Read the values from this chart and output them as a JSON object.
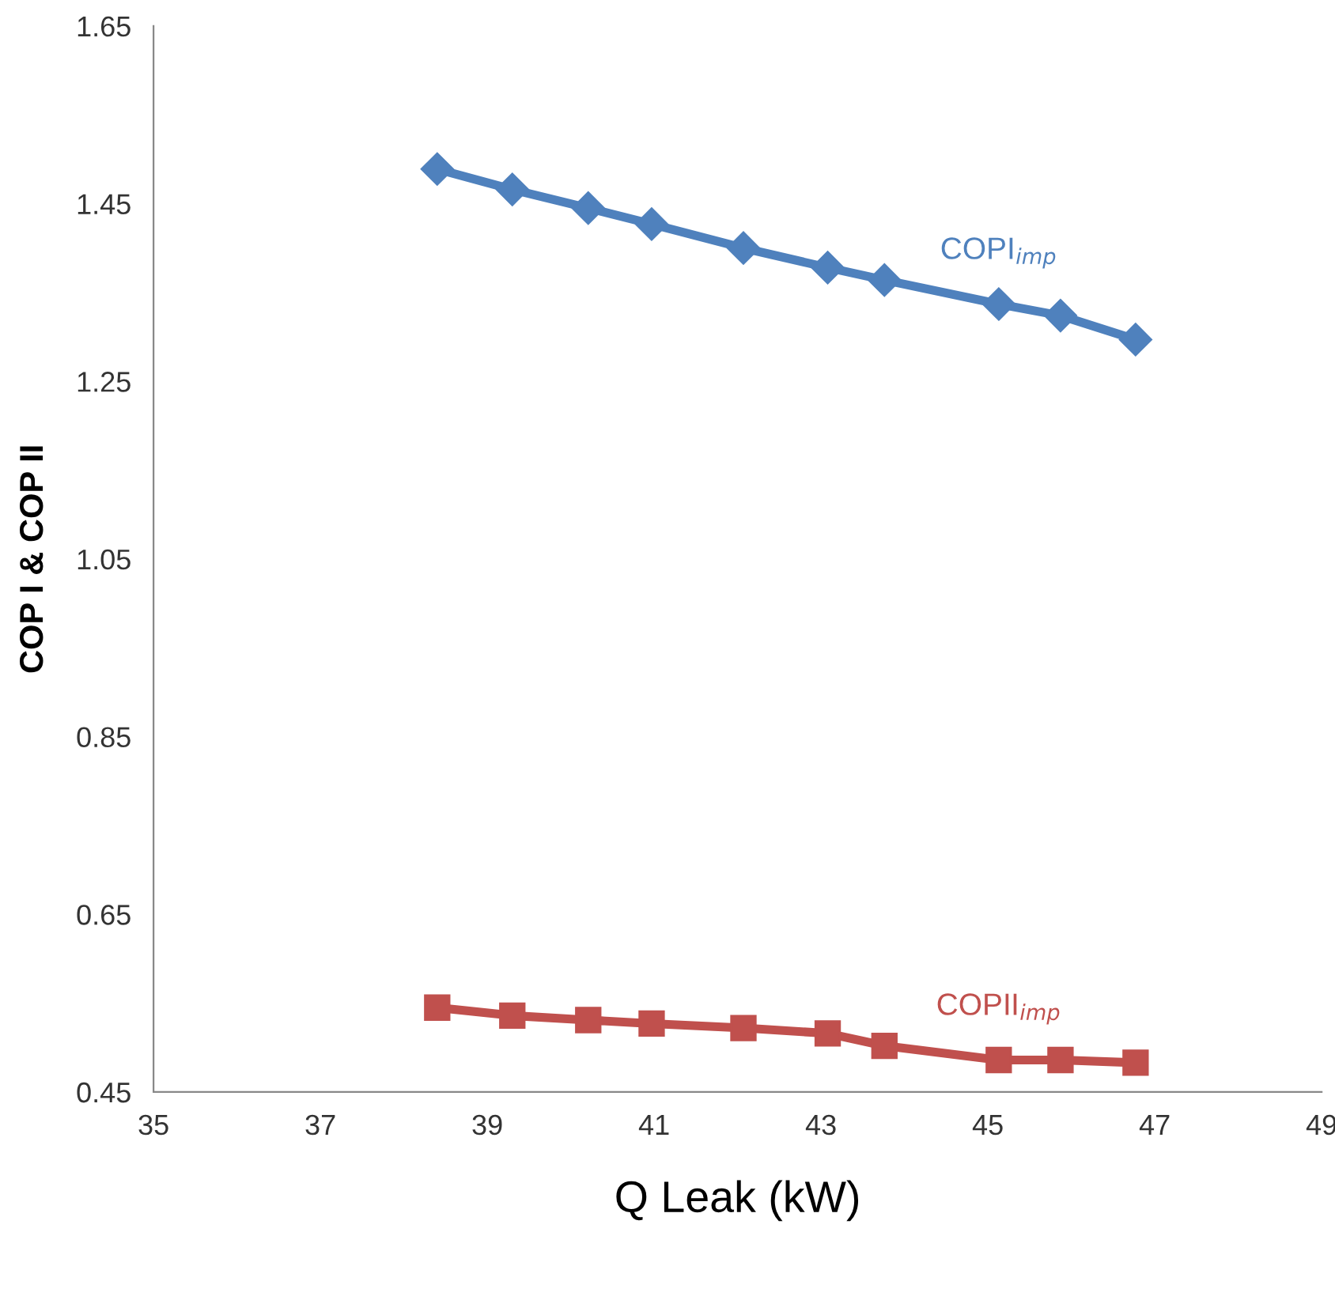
{
  "chart_data": {
    "type": "line",
    "xlabel": "Q Leak (kW)",
    "ylabel": "COP I & COP II",
    "x": [
      38.4,
      39.3,
      40.21,
      40.97,
      42.07,
      43.08,
      43.76,
      45.13,
      45.87,
      46.77
    ],
    "series": [
      {
        "name": "COPI$_{imp}$",
        "color": "#4f81bd",
        "marker": "diamond",
        "values": [
          1.489,
          1.466,
          1.445,
          1.427,
          1.4,
          1.378,
          1.364,
          1.337,
          1.324,
          1.297
        ]
      },
      {
        "name": "COPII$_{imp}$",
        "color": "#c0504d",
        "marker": "square",
        "values": [
          0.545,
          0.536,
          0.531,
          0.527,
          0.522,
          0.516,
          0.502,
          0.486,
          0.486,
          0.483
        ]
      }
    ],
    "xlim": [
      35,
      49
    ],
    "xticks": [
      35,
      37,
      39,
      41,
      43,
      45,
      47,
      49
    ],
    "ylim": [
      0.45,
      1.65
    ],
    "yticks": [
      0.45,
      0.65,
      0.85,
      1.05,
      1.25,
      1.45,
      1.65
    ],
    "grid": false,
    "legend": false,
    "line_style": "solid"
  }
}
